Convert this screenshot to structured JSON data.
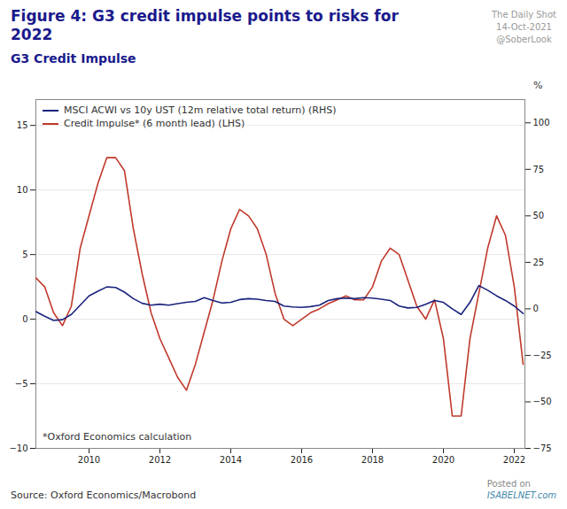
{
  "chart_data": {
    "type": "line",
    "title": "Figure 4: G3 credit impulse points to risks for\n2022",
    "subtitle": "G3 Credit Impulse",
    "source": "Source: Oxford Economics/Macrobond",
    "annotations": [
      "*Oxford Economics calculation"
    ],
    "watermarks": [
      "The Daily Shot",
      "14-Oct-2021",
      "@SoberLook",
      "Posted on",
      "ISABELNET.com"
    ],
    "y2label": "%",
    "x": [
      2008.5,
      2008.75,
      2009.0,
      2009.25,
      2009.5,
      2009.75,
      2010.0,
      2010.25,
      2010.5,
      2010.75,
      2011.0,
      2011.25,
      2011.5,
      2011.75,
      2012.0,
      2012.25,
      2012.5,
      2012.75,
      2013.0,
      2013.25,
      2013.5,
      2013.75,
      2014.0,
      2014.25,
      2014.5,
      2014.75,
      2015.0,
      2015.25,
      2015.5,
      2015.75,
      2016.0,
      2016.25,
      2016.5,
      2016.75,
      2017.0,
      2017.25,
      2017.5,
      2017.75,
      2018.0,
      2018.25,
      2018.5,
      2018.75,
      2019.0,
      2019.25,
      2019.5,
      2019.75,
      2020.0,
      2020.25,
      2020.5,
      2020.75,
      2021.0,
      2021.25,
      2021.5,
      2021.75,
      2022.0,
      2022.25
    ],
    "series": [
      {
        "name": "MSCI ACWI vs 10y UST (12m relative total return) (RHS)",
        "color": "#1a237e",
        "axis": "y2",
        "values": [
          -1.5,
          -4.0,
          -6.2,
          -5.8,
          -3.0,
          2.0,
          7.0,
          9.5,
          11.8,
          11.5,
          9.0,
          5.5,
          3.0,
          2.0,
          2.5,
          2.0,
          2.8,
          3.5,
          4.0,
          6.0,
          4.5,
          3.2,
          3.5,
          5.0,
          5.5,
          5.2,
          4.5,
          4.0,
          1.5,
          1.0,
          0.8,
          1.2,
          2.0,
          4.5,
          5.5,
          5.8,
          5.5,
          6.0,
          5.8,
          5.2,
          4.5,
          1.5,
          0.5,
          0.8,
          2.5,
          4.5,
          3.5,
          0.0,
          -3.0,
          3.5,
          12.5,
          10.0,
          7.0,
          4.5,
          1.5,
          -2.5
        ]
      },
      {
        "name": "Credit Impulse* (6 month lead) (LHS)",
        "color": "#c0392b",
        "values": [
          3.2,
          2.5,
          0.5,
          -0.5,
          1.0,
          5.5,
          8.0,
          10.5,
          12.5,
          12.5,
          11.5,
          7.0,
          3.5,
          0.5,
          -1.5,
          -3.0,
          -4.5,
          -5.5,
          -3.5,
          -1.0,
          1.5,
          4.5,
          7.0,
          8.5,
          8.0,
          7.0,
          5.0,
          2.0,
          0.0,
          -0.5,
          0.0,
          0.5,
          0.8,
          1.2,
          1.5,
          1.8,
          1.5,
          1.5,
          2.5,
          4.5,
          5.5,
          5.0,
          3.0,
          1.0,
          0.0,
          1.5,
          -1.5,
          -7.5,
          -7.5,
          -1.5,
          2.0,
          5.5,
          8.0,
          6.5,
          2.5,
          -3.5
        ]
      }
    ],
    "xlim": [
      2008.5,
      2022.3
    ],
    "xticks": [
      2010,
      2012,
      2014,
      2016,
      2018,
      2020,
      2022
    ],
    "ylim": [
      -10,
      17
    ],
    "yticks": [
      -10,
      -5,
      0,
      5,
      10,
      15
    ],
    "y2lim": [
      -75,
      112.5
    ],
    "y2ticks": [
      -75,
      -50,
      -25,
      0,
      25,
      50,
      75,
      100
    ],
    "grid": true,
    "legend": "upper-left"
  }
}
